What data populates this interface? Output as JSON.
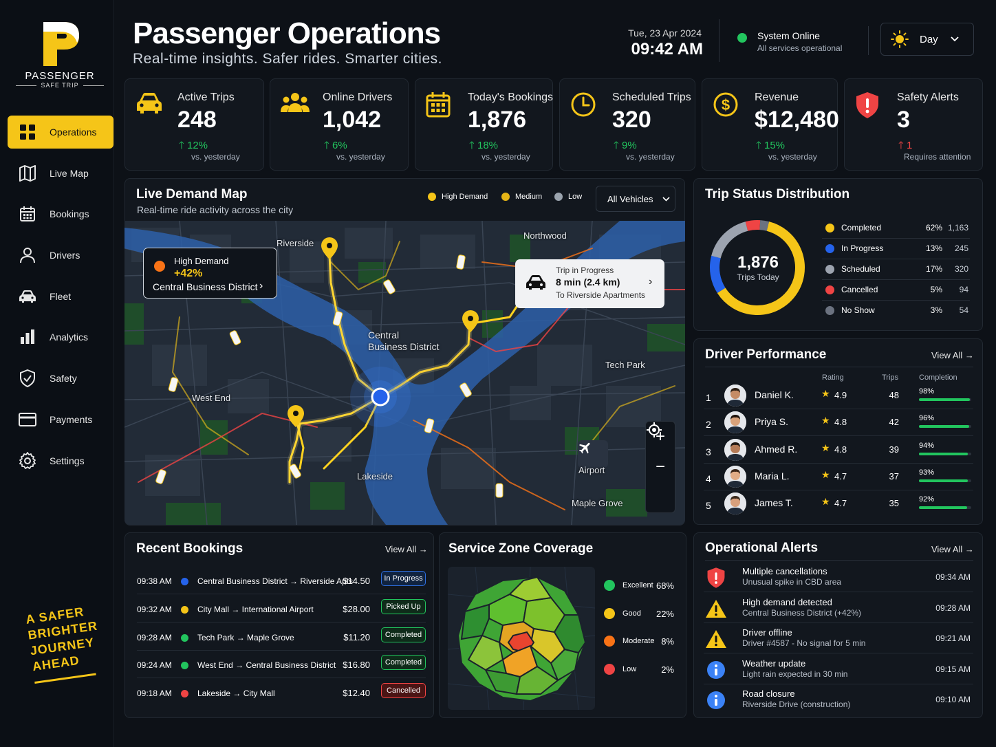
{
  "brand": {
    "name": "PASSENGER",
    "subtitle": "SAFE TRIP",
    "tagline": [
      "A SAFER",
      "BRIGHTER",
      "JOURNEY",
      "AHEAD"
    ]
  },
  "sidebar": {
    "items": [
      {
        "label": "Operations",
        "icon": "grid-icon",
        "active": true
      },
      {
        "label": "Live Map",
        "icon": "map-icon"
      },
      {
        "label": "Bookings",
        "icon": "calendar-icon"
      },
      {
        "label": "Drivers",
        "icon": "user-icon"
      },
      {
        "label": "Fleet",
        "icon": "car-icon"
      },
      {
        "label": "Analytics",
        "icon": "bar-chart-icon"
      },
      {
        "label": "Safety",
        "icon": "shield-check-icon"
      },
      {
        "label": "Payments",
        "icon": "card-icon"
      },
      {
        "label": "Settings",
        "icon": "gear-icon"
      }
    ]
  },
  "header": {
    "title": "Passenger Operations",
    "subtitle": "Real-time insights. Safer rides. Smarter cities.",
    "date": "Tue, 23 Apr 2024",
    "time": "09:42 AM",
    "status_title": "System Online",
    "status_sub": "All services operational",
    "theme_label": "Day"
  },
  "kpis": [
    {
      "label": "Active Trips",
      "value": "248",
      "change": "12%",
      "compare": "vs. yesterday",
      "icon": "car-icon",
      "color": "#f5c518"
    },
    {
      "label": "Online Drivers",
      "value": "1,042",
      "change": "6%",
      "compare": "vs. yesterday",
      "icon": "users-icon",
      "color": "#f5c518"
    },
    {
      "label": "Today's Bookings",
      "value": "1,876",
      "change": "18%",
      "compare": "vs. yesterday",
      "icon": "calendar-icon",
      "color": "#f5c518"
    },
    {
      "label": "Scheduled Trips",
      "value": "320",
      "change": "9%",
      "compare": "vs. yesterday",
      "icon": "clock-icon",
      "color": "#f5c518"
    },
    {
      "label": "Revenue",
      "value": "$12,480",
      "change": "15%",
      "compare": "vs. yesterday",
      "icon": "dollar-icon",
      "color": "#f5c518"
    },
    {
      "label": "Safety Alerts",
      "value": "3",
      "change": "1",
      "compare": "Requires attention",
      "icon": "alert-shield-icon",
      "color": "#ef4444"
    }
  ],
  "map": {
    "title": "Live Demand Map",
    "subtitle": "Real-time ride activity across the city",
    "legend": [
      {
        "label": "High Demand",
        "color": "#f5c518"
      },
      {
        "label": "Medium",
        "color": "#f5c518"
      },
      {
        "label": "Low",
        "color": "#9aa3ad"
      }
    ],
    "vehicle_filter": "All Vehicles",
    "labels": [
      "Riverside",
      "Northwood",
      "Central",
      "Business District",
      "Tech Park",
      "West End",
      "Lakeside",
      "Airport",
      "Maple Grove"
    ],
    "high_demand_card": {
      "title": "High Demand",
      "value": "+42%",
      "area": "Central Business District"
    },
    "trip_card": {
      "title": "Trip in Progress",
      "eta": "8 min (2.4 km)",
      "dest": "To Riverside Apartments"
    }
  },
  "trip_status": {
    "title": "Trip Status Distribution",
    "center_value": "1,876",
    "center_label": "Trips Today",
    "items": [
      {
        "label": "Completed",
        "pct": "62%",
        "count": "1,163",
        "color": "#f5c518",
        "share": 62
      },
      {
        "label": "In Progress",
        "pct": "13%",
        "count": "245",
        "color": "#2563eb",
        "share": 13
      },
      {
        "label": "Scheduled",
        "pct": "17%",
        "count": "320",
        "color": "#9ca3af",
        "share": 17
      },
      {
        "label": "Cancelled",
        "pct": "5%",
        "count": "94",
        "color": "#ef4444",
        "share": 5
      },
      {
        "label": "No Show",
        "pct": "3%",
        "count": "54",
        "color": "#6b7280",
        "share": 3
      }
    ]
  },
  "driver_performance": {
    "title": "Driver Performance",
    "view_all": "View All →",
    "headers": {
      "rating": "Rating",
      "trips": "Trips",
      "completion": "Completion"
    },
    "rows": [
      {
        "rank": "1",
        "name": "Daniel K.",
        "rating": "4.9",
        "trips": "48",
        "completion": "98%",
        "fill": 0.98
      },
      {
        "rank": "2",
        "name": "Priya S.",
        "rating": "4.8",
        "trips": "42",
        "completion": "96%",
        "fill": 0.96
      },
      {
        "rank": "3",
        "name": "Ahmed R.",
        "rating": "4.8",
        "trips": "39",
        "completion": "94%",
        "fill": 0.94
      },
      {
        "rank": "4",
        "name": "Maria L.",
        "rating": "4.7",
        "trips": "37",
        "completion": "93%",
        "fill": 0.93
      },
      {
        "rank": "5",
        "name": "James T.",
        "rating": "4.7",
        "trips": "35",
        "completion": "92%",
        "fill": 0.92
      }
    ]
  },
  "recent_bookings": {
    "title": "Recent Bookings",
    "view_all": "View All →",
    "rows": [
      {
        "time": "09:38 AM",
        "route": "Central Business District → Riverside Apts",
        "price": "$14.50",
        "status": "In Progress",
        "dot": "#2563eb",
        "badge_bg": "#10233f",
        "badge_border": "#2f6fe0"
      },
      {
        "time": "09:32 AM",
        "route": "City Mall → International Airport",
        "price": "$28.00",
        "status": "Picked Up",
        "dot": "#f5c518",
        "badge_bg": "#0f2b1a",
        "badge_border": "#22c55e"
      },
      {
        "time": "09:28 AM",
        "route": "Tech Park → Maple Grove",
        "price": "$11.20",
        "status": "Completed",
        "dot": "#22c55e",
        "badge_bg": "#0f2b1a",
        "badge_border": "#22c55e"
      },
      {
        "time": "09:24 AM",
        "route": "West End → Central Business District",
        "price": "$16.80",
        "status": "Completed",
        "dot": "#22c55e",
        "badge_bg": "#0f2b1a",
        "badge_border": "#22c55e"
      },
      {
        "time": "09:18 AM",
        "route": "Lakeside → City Mall",
        "price": "$12.40",
        "status": "Cancelled",
        "dot": "#ef4444",
        "badge_bg": "#4a1414",
        "badge_border": "#ef4444"
      }
    ]
  },
  "service_zone": {
    "title": "Service Zone Coverage",
    "items": [
      {
        "label": "Excellent",
        "pct": "68%",
        "color": "#22c55e"
      },
      {
        "label": "Good",
        "pct": "22%",
        "color": "#f5c518"
      },
      {
        "label": "Moderate",
        "pct": "8%",
        "color": "#f97316"
      },
      {
        "label": "Low",
        "pct": "2%",
        "color": "#ef4444"
      }
    ]
  },
  "alerts": {
    "title": "Operational Alerts",
    "view_all": "View All →",
    "rows": [
      {
        "title": "Multiple cancellations",
        "sub": "Unusual spike in CBD area",
        "time": "09:34 AM",
        "icon": "alert-shield-icon"
      },
      {
        "title": "High demand detected",
        "sub": "Central Business District (+42%)",
        "time": "09:28 AM",
        "icon": "warning-icon"
      },
      {
        "title": "Driver offline",
        "sub": "Driver #4587 - No signal for 5 min",
        "time": "09:21 AM",
        "icon": "warning-icon"
      },
      {
        "title": "Weather update",
        "sub": "Light rain expected in 30 min",
        "time": "09:15 AM",
        "icon": "info-icon"
      },
      {
        "title": "Road closure",
        "sub": "Riverside Drive (construction)",
        "time": "09:10 AM",
        "icon": "info-icon"
      }
    ]
  }
}
